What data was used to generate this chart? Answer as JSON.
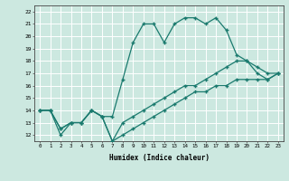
{
  "xlabel": "Humidex (Indice chaleur)",
  "bg_color": "#cce8e0",
  "line_color": "#1a7a6e",
  "grid_color": "#ffffff",
  "xlim": [
    -0.5,
    23.5
  ],
  "ylim": [
    11.5,
    22.5
  ],
  "yticks": [
    12,
    13,
    14,
    15,
    16,
    17,
    18,
    19,
    20,
    21,
    22
  ],
  "xticks": [
    0,
    1,
    2,
    3,
    4,
    5,
    6,
    7,
    8,
    9,
    10,
    11,
    12,
    13,
    14,
    15,
    16,
    17,
    18,
    19,
    20,
    21,
    22,
    23
  ],
  "line1_x": [
    0,
    1,
    2,
    3,
    4,
    5,
    6,
    7,
    8,
    9,
    10,
    11,
    12,
    13,
    14,
    15,
    16,
    17,
    18,
    19,
    20,
    21,
    22,
    23
  ],
  "line1_y": [
    14,
    14,
    12.5,
    13,
    13,
    14,
    13.5,
    13.5,
    16.5,
    19.5,
    21,
    21,
    19.5,
    21,
    21.5,
    21.5,
    21,
    21.5,
    20.5,
    18.5,
    18,
    17.5,
    17,
    17
  ],
  "line2_x": [
    0,
    1,
    2,
    3,
    4,
    5,
    6,
    7,
    8,
    9,
    10,
    11,
    12,
    13,
    14,
    15,
    16,
    17,
    18,
    19,
    20,
    21,
    22,
    23
  ],
  "line2_y": [
    14,
    14,
    12.5,
    13,
    13,
    14,
    13.5,
    11.5,
    13,
    13.5,
    14,
    14.5,
    15,
    15.5,
    16,
    16,
    16.5,
    17,
    17.5,
    18,
    18,
    17,
    16.5,
    17
  ],
  "line3_x": [
    0,
    1,
    2,
    3,
    4,
    5,
    6,
    7,
    8,
    9,
    10,
    11,
    12,
    13,
    14,
    15,
    16,
    17,
    18,
    19,
    20,
    21,
    22,
    23
  ],
  "line3_y": [
    14,
    14,
    12,
    13,
    13,
    14,
    13.5,
    11.5,
    12,
    12.5,
    13,
    13.5,
    14,
    14.5,
    15,
    15.5,
    15.5,
    16,
    16,
    16.5,
    16.5,
    16.5,
    16.5,
    17
  ]
}
